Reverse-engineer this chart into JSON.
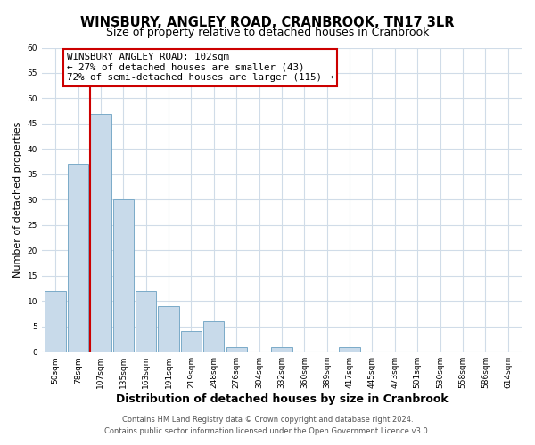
{
  "title": "WINSBURY, ANGLEY ROAD, CRANBROOK, TN17 3LR",
  "subtitle": "Size of property relative to detached houses in Cranbrook",
  "xlabel": "Distribution of detached houses by size in Cranbrook",
  "ylabel": "Number of detached properties",
  "bin_labels": [
    "50sqm",
    "78sqm",
    "107sqm",
    "135sqm",
    "163sqm",
    "191sqm",
    "219sqm",
    "248sqm",
    "276sqm",
    "304sqm",
    "332sqm",
    "360sqm",
    "389sqm",
    "417sqm",
    "445sqm",
    "473sqm",
    "501sqm",
    "530sqm",
    "558sqm",
    "586sqm",
    "614sqm"
  ],
  "bar_heights": [
    12,
    37,
    47,
    30,
    12,
    9,
    4,
    6,
    1,
    0,
    1,
    0,
    0,
    1,
    0,
    0,
    0,
    0,
    0,
    0,
    0
  ],
  "bar_color": "#c8daea",
  "bar_edge_color": "#7aaac8",
  "vline_color": "#cc0000",
  "vline_bar_index": 2,
  "ylim": [
    0,
    60
  ],
  "annotation_title": "WINSBURY ANGLEY ROAD: 102sqm",
  "annotation_line1": "← 27% of detached houses are smaller (43)",
  "annotation_line2": "72% of semi-detached houses are larger (115) →",
  "annotation_box_facecolor": "#ffffff",
  "annotation_box_edgecolor": "#cc0000",
  "grid_color": "#d0dce8",
  "background_color": "#ffffff",
  "footer1": "Contains HM Land Registry data © Crown copyright and database right 2024.",
  "footer2": "Contains public sector information licensed under the Open Government Licence v3.0.",
  "title_fontsize": 10.5,
  "subtitle_fontsize": 9,
  "ylabel_fontsize": 8,
  "xlabel_fontsize": 9,
  "tick_fontsize": 6.5,
  "annot_fontsize": 7.8,
  "footer_fontsize": 6
}
